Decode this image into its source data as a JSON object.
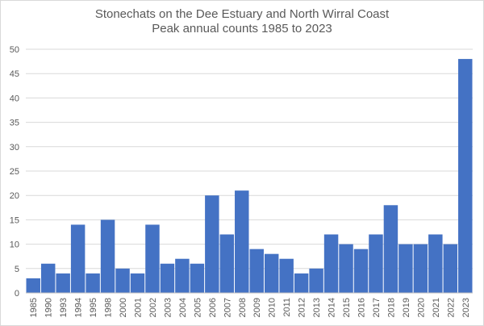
{
  "chart_data": {
    "type": "bar",
    "title": "Stonechats on the Dee Estuary and North Wirral Coast",
    "subtitle": "Peak annual counts 1985 to 2023",
    "xlabel": "",
    "ylabel": "",
    "ylim": [
      0,
      50
    ],
    "yticks": [
      0,
      5,
      10,
      15,
      20,
      25,
      30,
      35,
      40,
      45,
      50
    ],
    "grid": true,
    "legend": "none",
    "bar_color": "#4472c4",
    "categories": [
      "1985",
      "1990",
      "1993",
      "1994",
      "1995",
      "1998",
      "2000",
      "2001",
      "2002",
      "2003",
      "2004",
      "2005",
      "2006",
      "2007",
      "2008",
      "2009",
      "2010",
      "2011",
      "2012",
      "2013",
      "2014",
      "2015",
      "2016",
      "2017",
      "2018",
      "2019",
      "2020",
      "2021",
      "2022",
      "2023"
    ],
    "values": [
      3,
      6,
      4,
      14,
      4,
      15,
      5,
      4,
      14,
      6,
      7,
      6,
      20,
      12,
      21,
      9,
      8,
      7,
      4,
      5,
      12,
      10,
      9,
      12,
      18,
      10,
      10,
      12,
      10,
      48
    ]
  }
}
